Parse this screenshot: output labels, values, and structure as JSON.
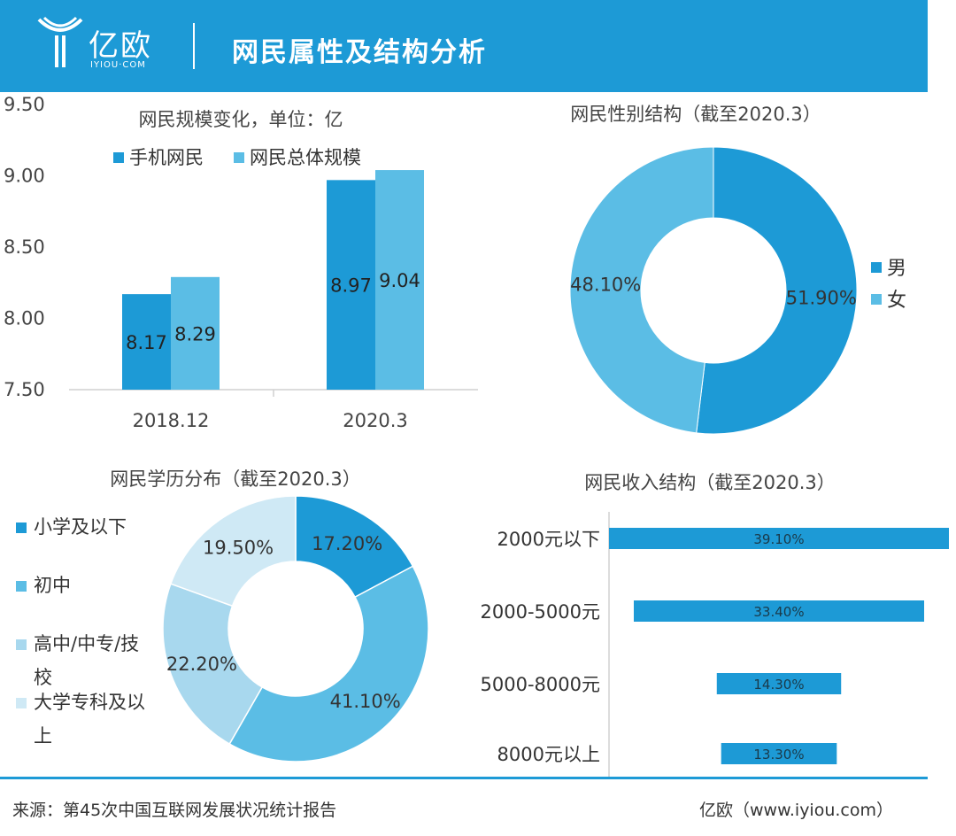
{
  "header": {
    "logo_text": "亿欧",
    "logo_sub": "IYIOU·COM",
    "title": "网民属性及结构分析"
  },
  "colors": {
    "dark": "#1d9ad6",
    "mid": "#5bbde5",
    "light": "#a8d8ee",
    "pale": "#cfe9f5"
  },
  "chart_data": [
    {
      "type": "bar",
      "title": "网民规模变化，单位：亿",
      "categories": [
        "2018.12",
        "2020.3"
      ],
      "series": [
        {
          "name": "手机网民",
          "values": [
            8.17,
            8.97
          ]
        },
        {
          "name": "网民总体规模",
          "values": [
            8.29,
            9.04
          ]
        }
      ],
      "ylim": [
        7.5,
        9.5
      ],
      "yticks": [
        "9.50",
        "9.00",
        "8.50",
        "8.00",
        "7.50"
      ],
      "value_labels": [
        [
          "8.17",
          "8.97"
        ],
        [
          "8.29",
          "9.04"
        ]
      ],
      "legend_position": "top"
    },
    {
      "type": "pie",
      "title": "网民性别结构（截至2020.3）",
      "labels": [
        "男",
        "女"
      ],
      "values": [
        51.9,
        48.1
      ],
      "value_labels": [
        "51.90%",
        "48.10%"
      ],
      "legend_position": "right"
    },
    {
      "type": "pie",
      "title": "网民学历分布（截至2020.3）",
      "labels": [
        "小学及以下",
        "初中",
        "高中/中专/技校",
        "大学专科及以上"
      ],
      "legend_labels": [
        [
          "小学及以下"
        ],
        [
          "初中"
        ],
        [
          "高中/中专/技",
          "校"
        ],
        [
          "大学专科及以",
          "上"
        ]
      ],
      "values": [
        17.2,
        41.1,
        22.2,
        19.5
      ],
      "value_labels": [
        "17.20%",
        "41.10%",
        "22.20%",
        "19.50%"
      ],
      "legend_position": "left"
    },
    {
      "type": "bar",
      "orientation": "horizontal",
      "title": "网民收入结构（截至2020.3）",
      "categories": [
        "2000元以下",
        "2000-5000元",
        "5000-8000元",
        "8000元以上"
      ],
      "values": [
        39.1,
        33.4,
        14.3,
        13.3
      ],
      "value_labels": [
        "39.10%",
        "33.40%",
        "14.30%",
        "13.30%"
      ]
    }
  ],
  "footer": {
    "source": "来源：第45次中国互联网发展状况统计报告",
    "brand": "亿欧（www.iyiou.com）"
  }
}
